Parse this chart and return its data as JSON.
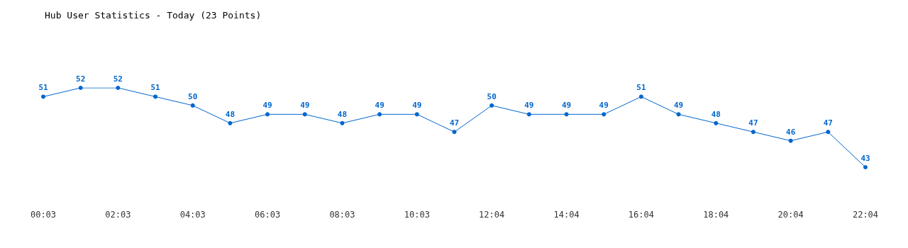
{
  "chart_data": {
    "type": "line",
    "title": "Hub User Statistics - Today (23 Points)",
    "categories": [
      "00:03",
      null,
      "02:03",
      null,
      "04:03",
      null,
      "06:03",
      null,
      "08:03",
      null,
      "10:03",
      null,
      "12:04",
      null,
      "14:04",
      null,
      "16:04",
      null,
      "18:04",
      null,
      "20:04",
      null,
      "22:04"
    ],
    "values": [
      51,
      52,
      52,
      51,
      50,
      48,
      49,
      49,
      48,
      49,
      49,
      47,
      50,
      49,
      49,
      49,
      51,
      49,
      48,
      47,
      46,
      47,
      43
    ],
    "color": "#0066cc",
    "data_labels": true,
    "marker": "circle"
  }
}
